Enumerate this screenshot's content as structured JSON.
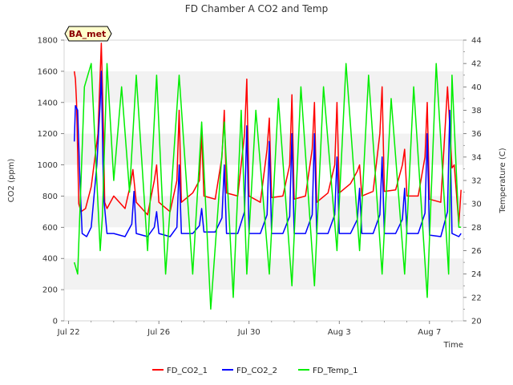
{
  "chart_data": {
    "type": "line",
    "title": "FD Chamber A CO2 and Temp",
    "badge": "BA_met",
    "xlabel": "Time",
    "ylabel_left": "CO2 (ppm)",
    "ylabel_right": "Temperature (C)",
    "x_range_days": [
      -0.2,
      17.5
    ],
    "x_ticks": [
      {
        "day": 0,
        "label": "Jul 22"
      },
      {
        "day": 4,
        "label": "Jul 26"
      },
      {
        "day": 8,
        "label": "Jul 30"
      },
      {
        "day": 12,
        "label": "Aug 3"
      },
      {
        "day": 16,
        "label": "Aug 7"
      }
    ],
    "ylim_left": [
      0,
      1800
    ],
    "yticks_left": [
      0,
      200,
      400,
      600,
      800,
      1000,
      1200,
      1400,
      1600,
      1800
    ],
    "ylim_right": [
      20,
      44
    ],
    "yticks_right": [
      20,
      22,
      24,
      26,
      28,
      30,
      32,
      34,
      36,
      38,
      40,
      42,
      44
    ],
    "grid": "horizontal bands",
    "legend_position": "bottom",
    "series_styles": {
      "FD_CO2_1": "#ff0000",
      "FD_CO2_2": "#0000ff",
      "FD_Temp_1": "#00ee00"
    },
    "series": [
      {
        "name": "FD_CO2_1",
        "axis": "left",
        "color": "#ff0000",
        "x": [
          0.25,
          0.3,
          0.35,
          0.45,
          0.55,
          0.75,
          1.0,
          1.3,
          1.45,
          1.55,
          1.6,
          1.7,
          2.0,
          2.5,
          2.75,
          2.85,
          3.0,
          3.5,
          3.8,
          3.9,
          4.0,
          4.5,
          4.8,
          4.9,
          5.0,
          5.5,
          5.8,
          5.9,
          6.0,
          6.5,
          6.8,
          6.9,
          7.0,
          7.5,
          7.8,
          7.9,
          8.0,
          8.5,
          8.8,
          8.9,
          9.0,
          9.5,
          9.8,
          9.9,
          10.0,
          10.5,
          10.8,
          10.9,
          11.0,
          11.5,
          11.8,
          11.9,
          12.0,
          12.5,
          12.8,
          12.9,
          13.0,
          13.5,
          13.8,
          13.9,
          14.0,
          14.5,
          14.8,
          14.9,
          15.0,
          15.5,
          15.8,
          15.9,
          16.0,
          16.5,
          16.8,
          16.9,
          17.0,
          17.1,
          17.3,
          17.4
        ],
        "y": [
          1600,
          1550,
          1400,
          750,
          700,
          720,
          860,
          1200,
          1780,
          1200,
          760,
          720,
          800,
          720,
          880,
          970,
          760,
          680,
          900,
          1000,
          760,
          700,
          900,
          1350,
          760,
          820,
          900,
          1200,
          800,
          780,
          1050,
          1350,
          820,
          800,
          1200,
          1550,
          800,
          760,
          1100,
          1300,
          790,
          800,
          1000,
          1450,
          780,
          800,
          1100,
          1400,
          760,
          820,
          1000,
          1400,
          820,
          880,
          960,
          1000,
          800,
          830,
          1200,
          1500,
          830,
          840,
          1000,
          1100,
          800,
          800,
          1050,
          1400,
          780,
          760,
          1500,
          1250,
          980,
          1000,
          620,
          840
        ]
      },
      {
        "name": "FD_CO2_2",
        "axis": "left",
        "color": "#0000ff",
        "x": [
          0.25,
          0.3,
          0.4,
          0.5,
          0.6,
          0.8,
          1.0,
          1.25,
          1.4,
          1.45,
          1.55,
          1.7,
          2.0,
          2.5,
          2.8,
          2.9,
          3.0,
          3.5,
          3.8,
          3.9,
          4.0,
          4.5,
          4.8,
          4.9,
          5.0,
          5.5,
          5.8,
          5.9,
          6.0,
          6.5,
          6.8,
          6.9,
          7.0,
          7.5,
          7.8,
          7.9,
          8.0,
          8.5,
          8.8,
          8.9,
          9.0,
          9.5,
          9.8,
          9.9,
          10.0,
          10.5,
          10.8,
          10.9,
          11.0,
          11.5,
          11.8,
          11.9,
          12.0,
          12.5,
          12.8,
          12.9,
          13.0,
          13.5,
          13.8,
          13.9,
          14.0,
          14.5,
          14.8,
          14.9,
          15.0,
          15.5,
          15.8,
          15.9,
          16.0,
          16.5,
          16.8,
          16.9,
          17.0,
          17.3,
          17.4
        ],
        "y": [
          1150,
          1380,
          1350,
          900,
          560,
          540,
          600,
          1000,
          1400,
          1600,
          800,
          560,
          560,
          540,
          620,
          830,
          560,
          540,
          600,
          700,
          560,
          540,
          600,
          1000,
          560,
          560,
          610,
          720,
          570,
          570,
          660,
          1000,
          560,
          560,
          700,
          1250,
          560,
          560,
          680,
          1150,
          560,
          560,
          670,
          1200,
          560,
          560,
          680,
          1200,
          560,
          560,
          680,
          1050,
          560,
          560,
          650,
          850,
          560,
          560,
          680,
          1050,
          560,
          560,
          650,
          850,
          560,
          560,
          690,
          1200,
          550,
          540,
          700,
          1350,
          560,
          540,
          560
        ]
      },
      {
        "name": "FD_Temp_1",
        "axis": "right",
        "color": "#00ee00",
        "x": [
          0.25,
          0.4,
          0.7,
          1.0,
          1.4,
          1.5,
          1.7,
          2.0,
          2.35,
          2.7,
          3.0,
          3.5,
          3.9,
          4.3,
          4.9,
          5.5,
          5.9,
          6.3,
          6.9,
          7.3,
          7.65,
          7.9,
          8.3,
          8.9,
          9.3,
          9.9,
          10.3,
          10.9,
          11.3,
          11.9,
          12.3,
          12.9,
          13.3,
          13.9,
          14.3,
          14.9,
          15.3,
          15.9,
          16.3,
          16.85,
          17.0,
          17.3,
          17.4
        ],
        "y": [
          25,
          24,
          40,
          42,
          26,
          29,
          42,
          32,
          40,
          31,
          41,
          26,
          41,
          24,
          41,
          24,
          37,
          21,
          37,
          22,
          38,
          24,
          38,
          24,
          39,
          23,
          40,
          23,
          40,
          26,
          42,
          26,
          41,
          24,
          39,
          24,
          40,
          22,
          42,
          24,
          41,
          28,
          28
        ]
      }
    ]
  }
}
